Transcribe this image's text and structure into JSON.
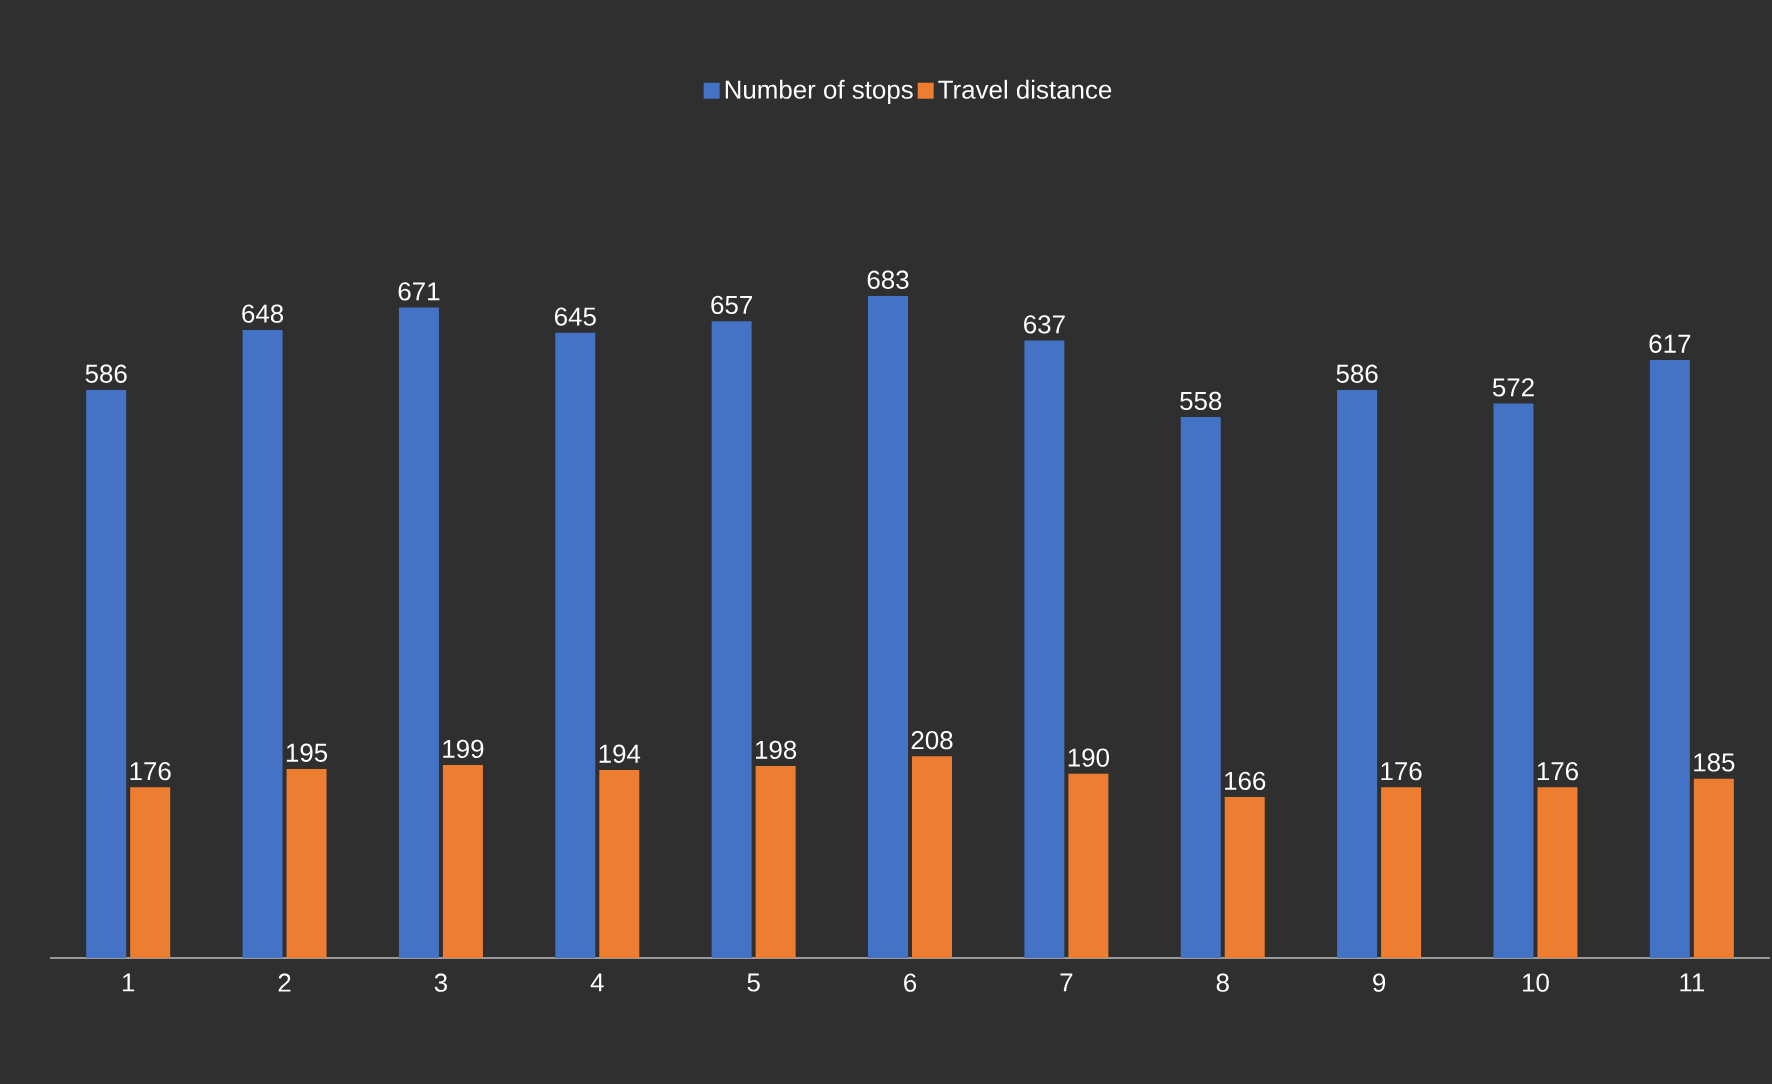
{
  "chart_data": {
    "type": "bar",
    "categories": [
      "1",
      "2",
      "3",
      "4",
      "5",
      "6",
      "7",
      "8",
      "9",
      "10",
      "11"
    ],
    "series": [
      {
        "name": "Number of stops",
        "color": "#4472c4",
        "values": [
          586,
          648,
          671,
          645,
          657,
          683,
          637,
          558,
          586,
          572,
          617
        ]
      },
      {
        "name": "Travel distance",
        "color": "#ed7d31",
        "values": [
          176,
          195,
          199,
          194,
          198,
          208,
          190,
          166,
          176,
          176,
          185
        ]
      }
    ],
    "data_labels": true,
    "legend": "top"
  }
}
